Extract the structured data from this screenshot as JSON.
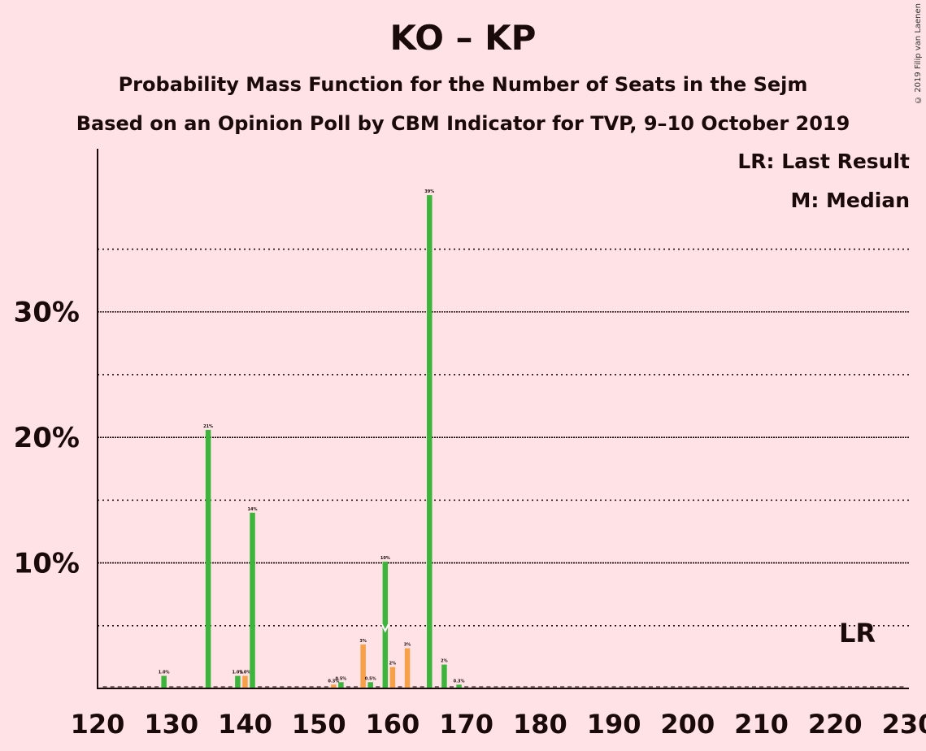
{
  "title": "KO – KP",
  "subtitle": "Probability Mass Function for the Number of Seats in the Sejm",
  "subtitle2": "Based on an Opinion Poll by CBM Indicator for TVP, 9–10 October 2019",
  "copyright": "© 2019 Filip van Laenen",
  "legend": {
    "last_result": "LR: Last Result",
    "median": "M: Median"
  },
  "colors": {
    "background": "#FFE2E5",
    "green": "#3DB53D",
    "orange": "#F7A04A",
    "axis": "#1a0a0a"
  },
  "chart_data": {
    "type": "bar",
    "x_range": [
      120,
      230
    ],
    "xticks": [
      120,
      130,
      140,
      150,
      160,
      170,
      180,
      190,
      200,
      210,
      220,
      230
    ],
    "ylim": [
      0,
      0.43
    ],
    "yticks_major": [
      {
        "value": 0.1,
        "label": "10%"
      },
      {
        "value": 0.2,
        "label": "20%"
      },
      {
        "value": 0.3,
        "label": "30%"
      }
    ],
    "yticks_minor": [
      0.05,
      0.15,
      0.25,
      0.35
    ],
    "last_result_seat": 223,
    "last_result_label": "LR",
    "median_seat": 159,
    "median_label": "M",
    "bars": [
      {
        "x": 129,
        "v": 0.01,
        "label": "1.0%",
        "color": "green"
      },
      {
        "x": 135,
        "v": 0.206,
        "label": "21%",
        "color": "green"
      },
      {
        "x": 139,
        "v": 0.01,
        "label": "1.0%",
        "color": "green"
      },
      {
        "x": 140,
        "v": 0.01,
        "label": "1.0%",
        "color": "orange"
      },
      {
        "x": 141,
        "v": 0.14,
        "label": "14%",
        "color": "green"
      },
      {
        "x": 152,
        "v": 0.003,
        "label": "0.3%",
        "color": "orange"
      },
      {
        "x": 153,
        "v": 0.005,
        "label": "0.5%",
        "color": "green"
      },
      {
        "x": 156,
        "v": 0.035,
        "label": "3%",
        "color": "orange"
      },
      {
        "x": 157,
        "v": 0.005,
        "label": "0.5%",
        "color": "green"
      },
      {
        "x": 159,
        "v": 0.101,
        "label": "10%",
        "color": "green"
      },
      {
        "x": 160,
        "v": 0.017,
        "label": "2%",
        "color": "orange"
      },
      {
        "x": 162,
        "v": 0.032,
        "label": "3%",
        "color": "orange"
      },
      {
        "x": 165,
        "v": 0.393,
        "label": "39%",
        "color": "green"
      },
      {
        "x": 167,
        "v": 0.019,
        "label": "2%",
        "color": "green"
      },
      {
        "x": 169,
        "v": 0.003,
        "label": "0.3%",
        "color": "green"
      }
    ]
  }
}
